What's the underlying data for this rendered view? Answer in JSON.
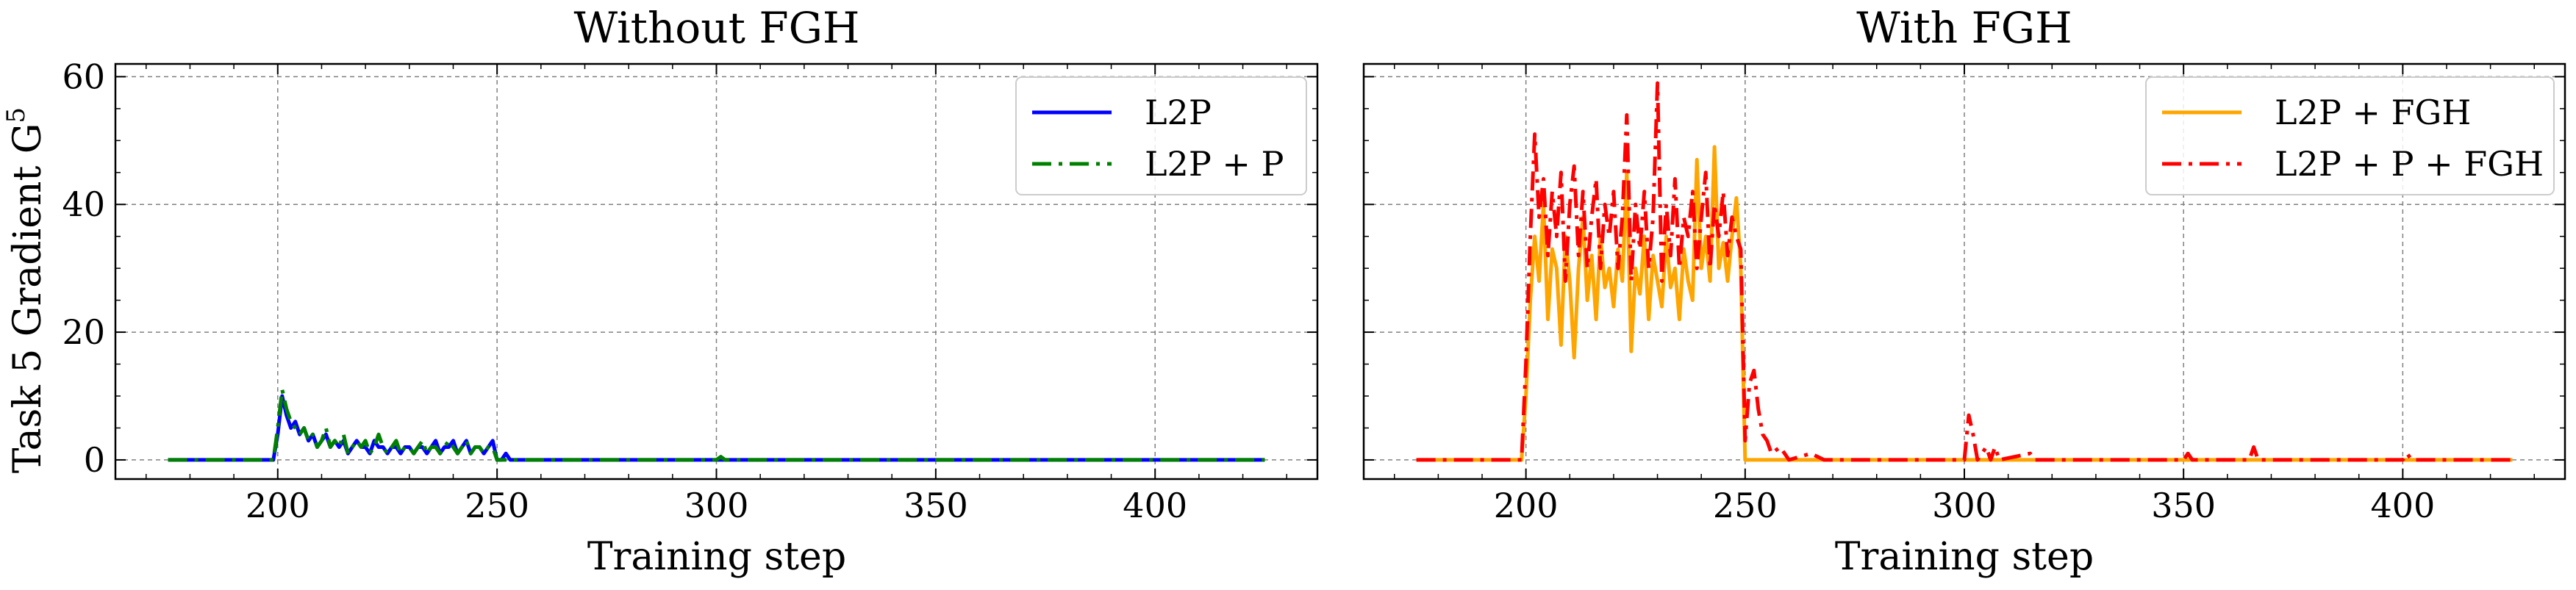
{
  "chart_data": [
    {
      "type": "line",
      "title": "Without FGH",
      "xlabel": "Training step",
      "ylabel": "Task 5 Gradient G",
      "ylabel_superscript": "5",
      "xlim": [
        163,
        437
      ],
      "ylim": [
        -3,
        62
      ],
      "xticks": [
        200,
        250,
        300,
        350,
        400
      ],
      "yticks": [
        0,
        20,
        40,
        60
      ],
      "grid": true,
      "legend_position": "top-right",
      "series": [
        {
          "name": "L2P",
          "color": "#0000ff",
          "dash": "solid",
          "points": [
            [
              175,
              0
            ],
            [
              199,
              0
            ],
            [
              200,
              4
            ],
            [
              201,
              10
            ],
            [
              202,
              7
            ],
            [
              203,
              5
            ],
            [
              204,
              6
            ],
            [
              205,
              4
            ],
            [
              206,
              5
            ],
            [
              207,
              3
            ],
            [
              208,
              4
            ],
            [
              209,
              2
            ],
            [
              210,
              3
            ],
            [
              211,
              4
            ],
            [
              212,
              2
            ],
            [
              213,
              3
            ],
            [
              214,
              2
            ],
            [
              215,
              3
            ],
            [
              216,
              1
            ],
            [
              217,
              2
            ],
            [
              218,
              3
            ],
            [
              219,
              2
            ],
            [
              220,
              2
            ],
            [
              221,
              1
            ],
            [
              222,
              3
            ],
            [
              223,
              2
            ],
            [
              224,
              2
            ],
            [
              225,
              1
            ],
            [
              226,
              2
            ],
            [
              227,
              2
            ],
            [
              228,
              1
            ],
            [
              229,
              2
            ],
            [
              230,
              2
            ],
            [
              231,
              1
            ],
            [
              232,
              2
            ],
            [
              233,
              2
            ],
            [
              234,
              1
            ],
            [
              235,
              2
            ],
            [
              236,
              3
            ],
            [
              237,
              1
            ],
            [
              238,
              2
            ],
            [
              239,
              2
            ],
            [
              240,
              3
            ],
            [
              241,
              1
            ],
            [
              242,
              2
            ],
            [
              243,
              3
            ],
            [
              244,
              1
            ],
            [
              245,
              2
            ],
            [
              246,
              2
            ],
            [
              247,
              1
            ],
            [
              248,
              2
            ],
            [
              249,
              3
            ],
            [
              250,
              0
            ],
            [
              251,
              0
            ],
            [
              252,
              1
            ],
            [
              253,
              0
            ],
            [
              254,
              0
            ],
            [
              300,
              0
            ],
            [
              301,
              0
            ],
            [
              360,
              0
            ],
            [
              425,
              0
            ]
          ]
        },
        {
          "name": "L2P + P",
          "color": "#008000",
          "dash": "dashdot",
          "points": [
            [
              175,
              0
            ],
            [
              199,
              0
            ],
            [
              200,
              5
            ],
            [
              201,
              11
            ],
            [
              202,
              8
            ],
            [
              203,
              6
            ],
            [
              204,
              5
            ],
            [
              205,
              4
            ],
            [
              206,
              5
            ],
            [
              207,
              3
            ],
            [
              208,
              4
            ],
            [
              209,
              2
            ],
            [
              210,
              3
            ],
            [
              211,
              5
            ],
            [
              212,
              2
            ],
            [
              213,
              3
            ],
            [
              214,
              2
            ],
            [
              215,
              4
            ],
            [
              216,
              1
            ],
            [
              217,
              2
            ],
            [
              218,
              3
            ],
            [
              219,
              2
            ],
            [
              220,
              3
            ],
            [
              221,
              1
            ],
            [
              222,
              2
            ],
            [
              223,
              4
            ],
            [
              224,
              2
            ],
            [
              225,
              1
            ],
            [
              226,
              2
            ],
            [
              227,
              3
            ],
            [
              228,
              1
            ],
            [
              229,
              2
            ],
            [
              230,
              2
            ],
            [
              231,
              1
            ],
            [
              232,
              2
            ],
            [
              233,
              3
            ],
            [
              234,
              1
            ],
            [
              235,
              2
            ],
            [
              236,
              2
            ],
            [
              237,
              1
            ],
            [
              238,
              2
            ],
            [
              239,
              3
            ],
            [
              240,
              2
            ],
            [
              241,
              1
            ],
            [
              242,
              2
            ],
            [
              243,
              3
            ],
            [
              244,
              1
            ],
            [
              245,
              2
            ],
            [
              246,
              2
            ],
            [
              247,
              1
            ],
            [
              248,
              2
            ],
            [
              249,
              2
            ],
            [
              250,
              0
            ],
            [
              260,
              0
            ],
            [
              300,
              0
            ],
            [
              301,
              0.5
            ],
            [
              302,
              0
            ],
            [
              360,
              0
            ],
            [
              425,
              0
            ]
          ]
        }
      ]
    },
    {
      "type": "line",
      "title": "With FGH",
      "xlabel": "Training step",
      "ylabel": "",
      "xlim": [
        163,
        437
      ],
      "ylim": [
        -3,
        62
      ],
      "xticks": [
        200,
        250,
        300,
        350,
        400
      ],
      "yticks": [
        0,
        20,
        40,
        60
      ],
      "grid": true,
      "legend_position": "top-right",
      "series": [
        {
          "name": "L2P + FGH",
          "color": "#ffa500",
          "dash": "solid",
          "points": [
            [
              175,
              0
            ],
            [
              199,
              0
            ],
            [
              200,
              10
            ],
            [
              201,
              25
            ],
            [
              202,
              35
            ],
            [
              203,
              28
            ],
            [
              204,
              40
            ],
            [
              205,
              22
            ],
            [
              206,
              33
            ],
            [
              207,
              30
            ],
            [
              208,
              18
            ],
            [
              209,
              35
            ],
            [
              210,
              28
            ],
            [
              211,
              16
            ],
            [
              212,
              30
            ],
            [
              213,
              38
            ],
            [
              214,
              25
            ],
            [
              215,
              32
            ],
            [
              216,
              22
            ],
            [
              217,
              35
            ],
            [
              218,
              27
            ],
            [
              219,
              30
            ],
            [
              220,
              24
            ],
            [
              221,
              33
            ],
            [
              222,
              28
            ],
            [
              223,
              45
            ],
            [
              224,
              17
            ],
            [
              225,
              30
            ],
            [
              226,
              26
            ],
            [
              227,
              35
            ],
            [
              228,
              22
            ],
            [
              229,
              32
            ],
            [
              230,
              28
            ],
            [
              231,
              24
            ],
            [
              232,
              35
            ],
            [
              233,
              27
            ],
            [
              234,
              30
            ],
            [
              235,
              22
            ],
            [
              236,
              33
            ],
            [
              237,
              28
            ],
            [
              238,
              25
            ],
            [
              239,
              47
            ],
            [
              240,
              30
            ],
            [
              241,
              35
            ],
            [
              242,
              28
            ],
            [
              243,
              49
            ],
            [
              244,
              30
            ],
            [
              245,
              34
            ],
            [
              246,
              28
            ],
            [
              247,
              35
            ],
            [
              248,
              41
            ],
            [
              249,
              30
            ],
            [
              250,
              0
            ],
            [
              260,
              0
            ],
            [
              300,
              0
            ],
            [
              350,
              0
            ],
            [
              400,
              0
            ],
            [
              425,
              0
            ]
          ]
        },
        {
          "name": "L2P + P + FGH",
          "color": "#ff0000",
          "dash": "dashdot",
          "points": [
            [
              175,
              0
            ],
            [
              199,
              0
            ],
            [
              200,
              15
            ],
            [
              201,
              35
            ],
            [
              202,
              51
            ],
            [
              203,
              38
            ],
            [
              204,
              44
            ],
            [
              205,
              32
            ],
            [
              206,
              42
            ],
            [
              207,
              35
            ],
            [
              208,
              45
            ],
            [
              209,
              28
            ],
            [
              210,
              40
            ],
            [
              211,
              46
            ],
            [
              212,
              32
            ],
            [
              213,
              42
            ],
            [
              214,
              30
            ],
            [
              215,
              38
            ],
            [
              216,
              44
            ],
            [
              217,
              30
            ],
            [
              218,
              40
            ],
            [
              219,
              35
            ],
            [
              220,
              42
            ],
            [
              221,
              30
            ],
            [
              222,
              38
            ],
            [
              223,
              54
            ],
            [
              224,
              28
            ],
            [
              225,
              40
            ],
            [
              226,
              33
            ],
            [
              227,
              42
            ],
            [
              228,
              30
            ],
            [
              229,
              38
            ],
            [
              230,
              59
            ],
            [
              231,
              28
            ],
            [
              232,
              40
            ],
            [
              233,
              32
            ],
            [
              234,
              44
            ],
            [
              235,
              30
            ],
            [
              236,
              38
            ],
            [
              237,
              35
            ],
            [
              238,
              42
            ],
            [
              239,
              30
            ],
            [
              240,
              38
            ],
            [
              241,
              45
            ],
            [
              242,
              30
            ],
            [
              243,
              40
            ],
            [
              244,
              35
            ],
            [
              245,
              42
            ],
            [
              246,
              32
            ],
            [
              247,
              38
            ],
            [
              248,
              35
            ],
            [
              249,
              33
            ],
            [
              250,
              3
            ],
            [
              251,
              12
            ],
            [
              252,
              14
            ],
            [
              253,
              8
            ],
            [
              254,
              4
            ],
            [
              255,
              3
            ],
            [
              256,
              1
            ],
            [
              258,
              2
            ],
            [
              260,
              0
            ],
            [
              265,
              1
            ],
            [
              268,
              0
            ],
            [
              300,
              0
            ],
            [
              301,
              7
            ],
            [
              302,
              4
            ],
            [
              303,
              0
            ],
            [
              305,
              2
            ],
            [
              306,
              0
            ],
            [
              307,
              2
            ],
            [
              308,
              0
            ],
            [
              315,
              1
            ],
            [
              316,
              0
            ],
            [
              350,
              0
            ],
            [
              351,
              1
            ],
            [
              352,
              0
            ],
            [
              365,
              0
            ],
            [
              366,
              2
            ],
            [
              367,
              0
            ],
            [
              400,
              0
            ],
            [
              401,
              1
            ],
            [
              402,
              0
            ],
            [
              425,
              0
            ]
          ]
        }
      ]
    }
  ]
}
